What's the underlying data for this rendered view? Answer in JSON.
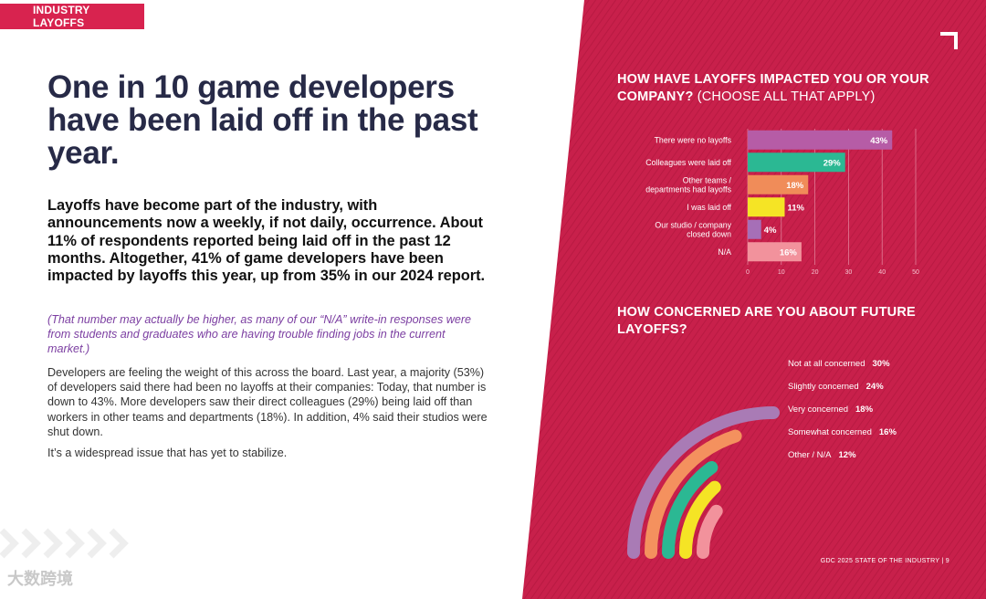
{
  "section_tag": "INDUSTRY LAYOFFS",
  "headline": "One in 10 game developers have been laid off in the past year.",
  "lead": "Layoffs have become part of the industry, with announcements now a weekly, if not daily, occurrence. About 11% of respondents reported being laid off in the past 12 months. Altogether, 41% of game developers have been impacted by layoffs this year, up from 35% in our 2024 report.",
  "note": "(That number may actually be higher, as many of our “N/A” write-in responses were from students and graduates who are having trouble finding jobs in the current market.)",
  "body1": "Developers are feeling the weight of this across the board. Last year, a majority (53%) of developers said there had been no layoffs at their companies: Today, that number is down to 43%. More developers saw their direct colleagues (29%) being laid off than workers in other teams and departments (18%). In addition, 4% said their studios were shut down.",
  "body2": "It’s a widespread issue that has yet to stabilize.",
  "footer": "GDC 2025 STATE OF THE INDUSTRY  |  9",
  "watermark": "大数跨境",
  "colors": {
    "panel": "#c8204b",
    "tag": "#d8234f",
    "headline": "#272a47",
    "note": "#7b3ea1"
  },
  "chart_data": [
    {
      "type": "bar",
      "orientation": "horizontal",
      "title": "HOW HAVE LAYOFFS IMPACTED YOU OR YOUR COMPANY?",
      "subtitle": "(CHOOSE ALL THAT APPLY)",
      "categories": [
        [
          "There were no layoffs"
        ],
        [
          "Colleagues were laid off"
        ],
        [
          "Other teams /",
          "departments had layoffs"
        ],
        [
          "I was laid off"
        ],
        [
          "Our studio / company",
          "closed down"
        ],
        [
          "N/A"
        ]
      ],
      "values": [
        43,
        29,
        18,
        11,
        4,
        16
      ],
      "value_labels": [
        "43%",
        "29%",
        "18%",
        "11%",
        "4%",
        "16%"
      ],
      "bar_colors": [
        "#b65ca6",
        "#2bb893",
        "#f08c59",
        "#f5e425",
        "#a66fb7",
        "#f2929c"
      ],
      "xlim": [
        0,
        50
      ],
      "xticks": [
        0,
        10,
        20,
        30,
        40,
        50
      ],
      "grid": true
    },
    {
      "type": "radial_bar",
      "title": "HOW CONCERNED ARE YOU ABOUT FUTURE LAYOFFS?",
      "categories": [
        "Not at all concerned",
        "Slightly concerned",
        "Very concerned",
        "Somewhat concerned",
        "Other / N/A"
      ],
      "values": [
        30,
        24,
        18,
        16,
        12
      ],
      "value_labels": [
        "30%",
        "24%",
        "18%",
        "16%",
        "12%"
      ],
      "bar_colors": [
        "#a97bb5",
        "#f4915e",
        "#2bb893",
        "#f5e425",
        "#f2929c"
      ]
    }
  ]
}
